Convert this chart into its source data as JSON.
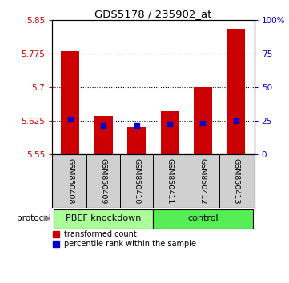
{
  "title": "GDS5178 / 235902_at",
  "samples": [
    "GSM850408",
    "GSM850409",
    "GSM850410",
    "GSM850411",
    "GSM850412",
    "GSM850413"
  ],
  "bar_values": [
    5.78,
    5.635,
    5.61,
    5.645,
    5.7,
    5.83
  ],
  "percentile_values": [
    5.627,
    5.613,
    5.614,
    5.618,
    5.619,
    5.625
  ],
  "bar_color": "#cc0000",
  "dot_color": "#0000cc",
  "ylim": [
    5.55,
    5.85
  ],
  "yticks": [
    5.55,
    5.625,
    5.7,
    5.775,
    5.85
  ],
  "ytick_labels": [
    "5.55",
    "5.625",
    "5.7",
    "5.775",
    "5.85"
  ],
  "right_yticks": [
    0,
    25,
    50,
    75,
    100
  ],
  "right_ytick_labels": [
    "0",
    "25",
    "50",
    "75",
    "100%"
  ],
  "groups": [
    {
      "label": "PBEF knockdown",
      "indices": [
        0,
        1,
        2
      ],
      "color": "#aaff99"
    },
    {
      "label": "control",
      "indices": [
        3,
        4,
        5
      ],
      "color": "#55ee55"
    }
  ],
  "protocol_label": "protocol",
  "legend_items": [
    {
      "color": "#cc0000",
      "label": "transformed count"
    },
    {
      "color": "#0000cc",
      "label": "percentile rank within the sample"
    }
  ],
  "bar_width": 0.55,
  "grid_color": "#aaaaaa",
  "bg_color": "#ffffff",
  "tick_label_color_left": "#cc0000",
  "tick_label_color_right": "#0000cc",
  "figsize": [
    3.61,
    3.54
  ],
  "dpi": 100
}
